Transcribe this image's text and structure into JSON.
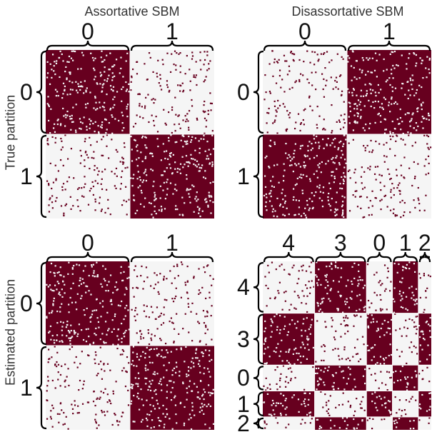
{
  "titles": {
    "left": "Assortative SBM",
    "right": "Disassortative SBM"
  },
  "row_labels": {
    "top": "True partition",
    "bottom": "Estimated partition"
  },
  "colors": {
    "edge": "#67001f",
    "background": "#f5f5f5",
    "bracket": "#000000"
  },
  "panels": [
    {
      "id": "true-assortative",
      "blocks": [
        "0",
        "1"
      ],
      "sizes": [
        1,
        1
      ],
      "pattern": "assortative"
    },
    {
      "id": "true-disassortative",
      "blocks": [
        "0",
        "1"
      ],
      "sizes": [
        1,
        1
      ],
      "pattern": "disassortative"
    },
    {
      "id": "estimated-assortative",
      "blocks": [
        "0",
        "1"
      ],
      "sizes": [
        1,
        1
      ],
      "pattern": "assortative"
    },
    {
      "id": "estimated-disassortative",
      "blocks": [
        "4",
        "3",
        "0",
        "1",
        "2"
      ],
      "sizes": [
        2,
        2,
        1,
        1,
        0.5
      ],
      "pattern": "disassortative"
    }
  ]
}
